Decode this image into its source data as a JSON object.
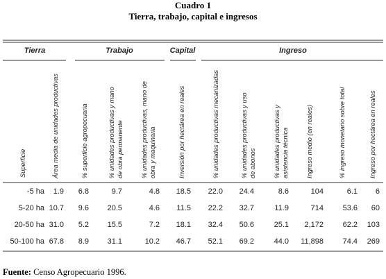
{
  "header": {
    "title": "Cuadro 1",
    "subtitle": "Tierra, trabajo, capital e ingresos"
  },
  "groups": [
    "Tierra",
    "Trabajo",
    "Capital",
    "Ingreso"
  ],
  "columns": [
    [
      "Superficie"
    ],
    [
      "Área media de unidades productivas"
    ],
    [
      "% superficie agropecuaria"
    ],
    [
      "% unidades productivas y mano",
      "de obra permanente"
    ],
    [
      "% unidades productivas, mano de",
      "obra y maquinaria"
    ],
    [
      "Inversión por hectárea en reales"
    ],
    [
      "% unidades productivas mecanizadas"
    ],
    [
      "% unidades productivas y uso",
      "de abonos"
    ],
    [
      "% unidades productivas y",
      "asistencia técnica"
    ],
    [
      "Ingreso medio  (en reales)"
    ],
    [
      "% ingreso monetario sobre total"
    ],
    [
      "Ingreso por hectárea en reales"
    ]
  ],
  "rows": [
    [
      "-5 ha",
      "1.9",
      "6.8",
      "9.7",
      "4.8",
      "18.5",
      "22.0",
      "24.4",
      "8.6",
      "104",
      "6.1",
      "6"
    ],
    [
      "5-20 ha",
      "10.7",
      "9.6",
      "20.5",
      "4.6",
      "11.5",
      "22.2",
      "32.7",
      "11.9",
      "714",
      "53.6",
      "60"
    ],
    [
      "20-50 ha",
      "31.0",
      "5.2",
      "15.5",
      "7.2",
      "18.1",
      "32.4",
      "50.6",
      "25.1",
      "2,172",
      "62.2",
      "103"
    ],
    [
      "50-100 ha",
      "67.8",
      "8.9",
      "31.1",
      "10.2",
      "46.7",
      "52.1",
      "69.2",
      "44.0",
      "11,898",
      "74.4",
      "269"
    ]
  ],
  "source": {
    "label": "Fuente:",
    "text": "Censo Agropecuario 1996."
  }
}
